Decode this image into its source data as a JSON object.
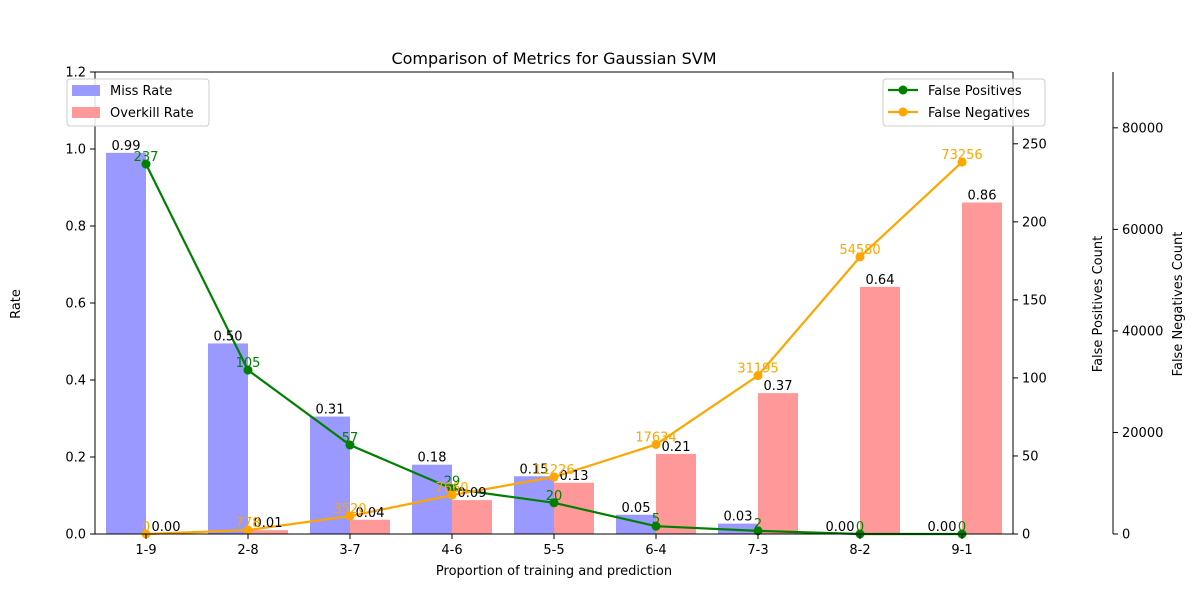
{
  "chart_data": {
    "type": "bar",
    "title": "Comparison of Metrics for Gaussian SVM",
    "xlabel": "Proportion of training and prediction",
    "ylabel": "Rate",
    "y2label": "False Positives Count",
    "y3label": "False Negatives Count",
    "categories": [
      "1-9",
      "2-8",
      "3-7",
      "4-6",
      "5-5",
      "6-4",
      "7-3",
      "8-2",
      "9-1"
    ],
    "ylim": [
      0,
      1.2
    ],
    "y2lim": [
      0,
      296
    ],
    "y3lim": [
      0,
      91000
    ],
    "yticks": [
      "0.0",
      "0.2",
      "0.4",
      "0.6",
      "0.8",
      "1.0",
      "1.2"
    ],
    "y2ticks": [
      "0",
      "50",
      "100",
      "150",
      "200",
      "250"
    ],
    "y3ticks": [
      "0",
      "20000",
      "40000",
      "60000",
      "80000"
    ],
    "bar_series": [
      {
        "name": "Miss Rate",
        "color": "#9999ff",
        "values": [
          0.99,
          0.495,
          0.305,
          0.18,
          0.15,
          0.05,
          0.027,
          0.0,
          0.0
        ],
        "labels": [
          "0.99",
          "0.50",
          "0.31",
          "0.18",
          "0.15",
          "0.05",
          "0.03",
          "0.00",
          "0.00"
        ]
      },
      {
        "name": "Overkill Rate",
        "color": "#ff9999",
        "values": [
          0.0,
          0.01,
          0.037,
          0.088,
          0.133,
          0.208,
          0.366,
          0.642,
          0.861
        ],
        "labels": [
          "0.00",
          "0.01",
          "0.04",
          "0.09",
          "0.13",
          "0.21",
          "0.37",
          "0.64",
          "0.86"
        ]
      }
    ],
    "line_series": [
      {
        "name": "False Positives",
        "color": "#008000",
        "axis": "y2",
        "values": [
          237,
          105,
          57,
          29,
          20,
          5,
          2,
          0,
          0
        ],
        "labels": [
          "237",
          "105",
          "57",
          "29",
          "20",
          "5",
          "2",
          "0",
          "0"
        ]
      },
      {
        "name": "False Negatives",
        "color": "#ffa500",
        "axis": "y3",
        "values": [
          0,
          778,
          3520,
          7660,
          11226,
          17634,
          31195,
          54580,
          73256
        ],
        "labels": [
          "0",
          "778",
          "3520",
          "7660",
          "11226",
          "17634",
          "31195",
          "54580",
          "73256"
        ]
      }
    ],
    "legend_left": "upper-left",
    "legend_right": "upper-right",
    "grid": false
  }
}
